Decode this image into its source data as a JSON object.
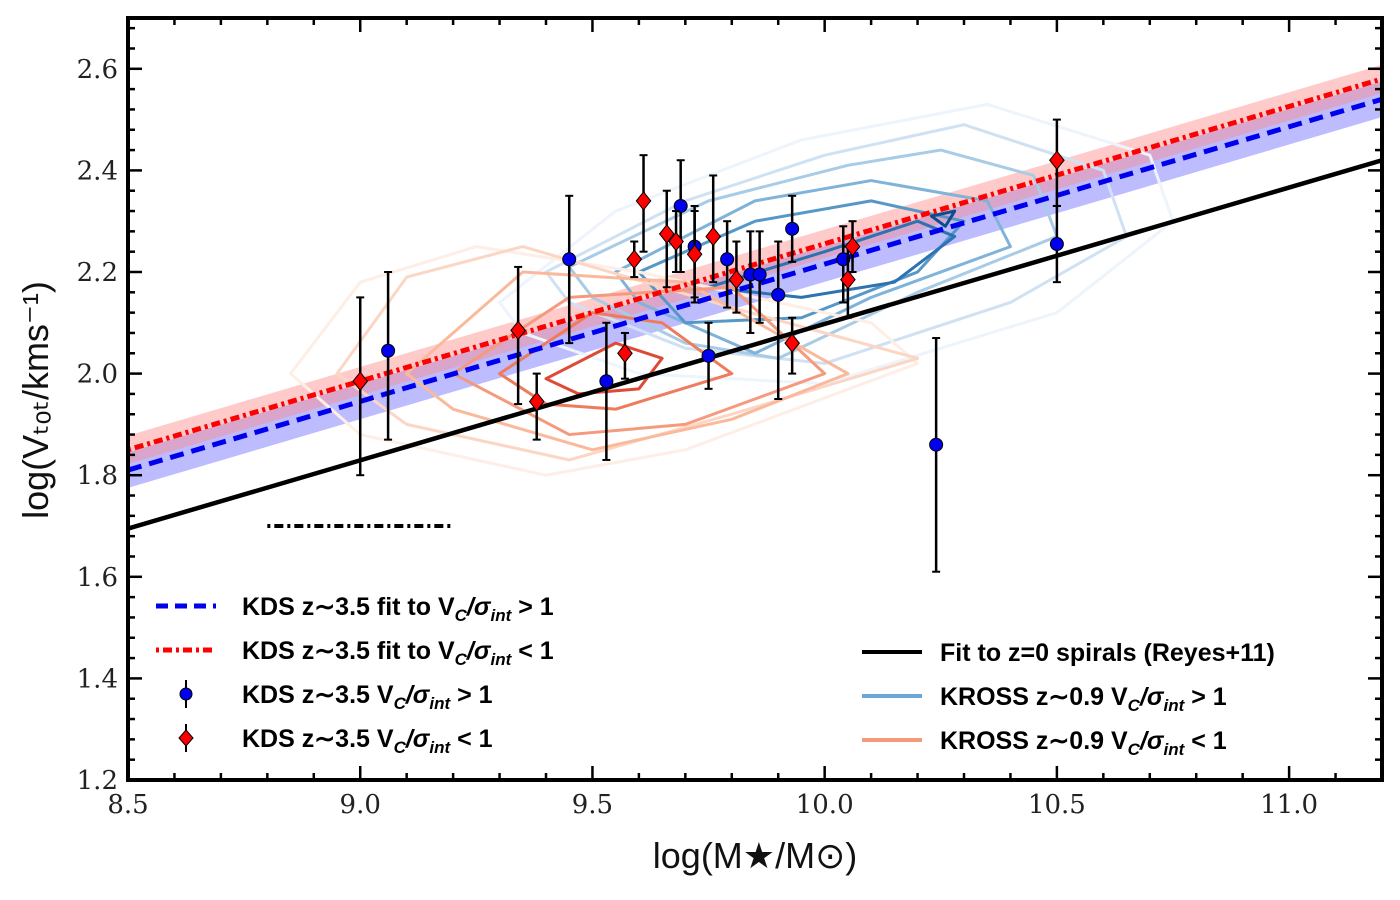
{
  "chart_data": {
    "type": "scatter",
    "xlabel": "log(M★/M⊙)",
    "ylabel": "log(Vₜₒₜ/kms⁻¹)",
    "xlim": [
      8.5,
      11.2
    ],
    "ylim": [
      1.2,
      2.7
    ],
    "xticks": [
      "8.5",
      "9.0",
      "9.5",
      "10.0",
      "10.5",
      "11.0"
    ],
    "yticks": [
      "1.2",
      "1.4",
      "1.6",
      "1.8",
      "2.0",
      "2.2",
      "2.4",
      "2.6"
    ],
    "colors": {
      "kds_blue": "#0000ee",
      "kds_red": "#ff0000",
      "reyes_black": "#000000",
      "kross_blue": "#3a7fbf",
      "kross_red": "#f08060",
      "band_blue": "#6b6bff",
      "band_red": "#ff8a8a"
    },
    "series": [
      {
        "name": "KDS z∼3.5 fit to V_C/σ_int > 1",
        "kind": "line",
        "style": "dashed",
        "color": "#0000ee",
        "x": [
          8.5,
          11.2
        ],
        "y": [
          1.81,
          2.54
        ],
        "band": 0.035
      },
      {
        "name": "KDS z∼3.5 fit to V_C/σ_int < 1",
        "kind": "line",
        "style": "dotdash",
        "color": "#ff0000",
        "x": [
          8.5,
          11.2
        ],
        "y": [
          1.85,
          2.58
        ],
        "band": 0.028
      },
      {
        "name": "Fit to z=0 spirals (Reyes+11)",
        "kind": "line",
        "style": "solid",
        "color": "#000000",
        "x": [
          8.5,
          11.2
        ],
        "y": [
          1.695,
          2.42
        ]
      },
      {
        "name": "KDS z∼3.5 V_C/σ_int > 1",
        "kind": "points",
        "marker": "circle",
        "color": "#0000ee",
        "points": [
          {
            "x": 9.06,
            "y": 2.045,
            "lo": 1.87,
            "hi": 2.2
          },
          {
            "x": 9.45,
            "y": 2.225,
            "lo": 2.06,
            "hi": 2.35
          },
          {
            "x": 9.53,
            "y": 1.985,
            "lo": 1.83,
            "hi": 2.1
          },
          {
            "x": 9.69,
            "y": 2.33,
            "lo": 2.2,
            "hi": 2.42
          },
          {
            "x": 9.72,
            "y": 2.25,
            "lo": 2.15,
            "hi": 2.33
          },
          {
            "x": 9.75,
            "y": 2.035,
            "lo": 1.97,
            "hi": 2.1
          },
          {
            "x": 9.79,
            "y": 2.225,
            "lo": 2.13,
            "hi": 2.3
          },
          {
            "x": 9.84,
            "y": 2.195,
            "lo": 2.08,
            "hi": 2.28
          },
          {
            "x": 9.86,
            "y": 2.195,
            "lo": 2.1,
            "hi": 2.28
          },
          {
            "x": 9.9,
            "y": 2.155,
            "lo": 1.95,
            "hi": 2.26
          },
          {
            "x": 9.93,
            "y": 2.285,
            "lo": 2.22,
            "hi": 2.35
          },
          {
            "x": 10.04,
            "y": 2.225,
            "lo": 2.14,
            "hi": 2.29
          },
          {
            "x": 10.24,
            "y": 1.86,
            "lo": 1.61,
            "hi": 2.07
          },
          {
            "x": 10.5,
            "y": 2.255,
            "lo": 2.18,
            "hi": 2.33
          }
        ]
      },
      {
        "name": "KDS z∼3.5 V_C/σ_int < 1",
        "kind": "points",
        "marker": "diamond",
        "color": "#ff0000",
        "points": [
          {
            "x": 9.0,
            "y": 1.985,
            "lo": 1.8,
            "hi": 2.15
          },
          {
            "x": 9.34,
            "y": 2.085,
            "lo": 1.94,
            "hi": 2.21
          },
          {
            "x": 9.38,
            "y": 1.945,
            "lo": 1.87,
            "hi": 2.0
          },
          {
            "x": 9.57,
            "y": 2.04,
            "lo": 1.99,
            "hi": 2.08
          },
          {
            "x": 9.59,
            "y": 2.225,
            "lo": 2.19,
            "hi": 2.26
          },
          {
            "x": 9.61,
            "y": 2.34,
            "lo": 2.24,
            "hi": 2.43
          },
          {
            "x": 9.66,
            "y": 2.275,
            "lo": 2.17,
            "hi": 2.36
          },
          {
            "x": 9.68,
            "y": 2.26,
            "lo": 2.2,
            "hi": 2.32
          },
          {
            "x": 9.72,
            "y": 2.235,
            "lo": 2.14,
            "hi": 2.32
          },
          {
            "x": 9.76,
            "y": 2.27,
            "lo": 2.18,
            "hi": 2.39
          },
          {
            "x": 9.81,
            "y": 2.185,
            "lo": 2.12,
            "hi": 2.26
          },
          {
            "x": 9.93,
            "y": 2.06,
            "lo": 2.0,
            "hi": 2.11
          },
          {
            "x": 10.05,
            "y": 2.185,
            "lo": 2.11,
            "hi": 2.25
          },
          {
            "x": 10.06,
            "y": 2.25,
            "lo": 2.2,
            "hi": 2.3
          },
          {
            "x": 10.5,
            "y": 2.42,
            "lo": 2.33,
            "hi": 2.5
          }
        ]
      }
    ],
    "annotations": [
      {
        "type": "scale-bar",
        "x": [
          8.8,
          9.2
        ],
        "y": 1.7,
        "style": "dotdash",
        "color": "#000000"
      }
    ],
    "contours": [
      {
        "group": "KROSS z∼0.9 V_C/σ_int > 1",
        "levels": [
          {
            "color": "#eef4fb",
            "pts": [
              [
                9.3,
                2.14
              ],
              [
                9.55,
                2.32
              ],
              [
                9.95,
                2.46
              ],
              [
                10.35,
                2.53
              ],
              [
                10.7,
                2.43
              ],
              [
                10.75,
                2.3
              ],
              [
                10.5,
                2.12
              ],
              [
                10.0,
                1.98
              ],
              [
                9.6,
                2.0
              ],
              [
                9.35,
                2.08
              ]
            ]
          },
          {
            "color": "#cfe1f2",
            "pts": [
              [
                9.4,
                2.2
              ],
              [
                9.7,
                2.34
              ],
              [
                10.0,
                2.43
              ],
              [
                10.3,
                2.49
              ],
              [
                10.6,
                2.4
              ],
              [
                10.65,
                2.27
              ],
              [
                10.4,
                2.14
              ],
              [
                10.0,
                2.02
              ],
              [
                9.7,
                2.05
              ],
              [
                9.45,
                2.14
              ]
            ]
          },
          {
            "color": "#a8cbe6",
            "pts": [
              [
                9.45,
                2.21
              ],
              [
                9.75,
                2.34
              ],
              [
                10.05,
                2.41
              ],
              [
                10.25,
                2.44
              ],
              [
                10.45,
                2.39
              ],
              [
                10.5,
                2.27
              ],
              [
                10.2,
                2.16
              ],
              [
                9.9,
                2.03
              ],
              [
                9.7,
                2.06
              ],
              [
                9.5,
                2.15
              ]
            ]
          },
          {
            "color": "#7fb3d9",
            "pts": [
              [
                9.55,
                2.2
              ],
              [
                9.85,
                2.34
              ],
              [
                10.1,
                2.38
              ],
              [
                10.35,
                2.34
              ],
              [
                10.4,
                2.25
              ],
              [
                10.1,
                2.15
              ],
              [
                9.85,
                2.04
              ],
              [
                9.6,
                2.14
              ]
            ]
          },
          {
            "color": "#5598c8",
            "pts": [
              [
                9.6,
                2.2
              ],
              [
                9.85,
                2.3
              ],
              [
                10.1,
                2.34
              ],
              [
                10.3,
                2.3
              ],
              [
                10.2,
                2.2
              ],
              [
                9.95,
                2.11
              ],
              [
                9.7,
                2.1
              ]
            ]
          },
          {
            "color": "#2e72b0",
            "pts": [
              [
                9.75,
                2.17
              ],
              [
                10.0,
                2.24
              ],
              [
                10.2,
                2.3
              ],
              [
                10.28,
                2.27
              ],
              [
                10.15,
                2.18
              ],
              [
                9.95,
                2.15
              ]
            ]
          },
          {
            "color": "#0d4c8f",
            "pts": [
              [
                10.23,
                2.31
              ],
              [
                10.28,
                2.32
              ],
              [
                10.26,
                2.29
              ]
            ]
          }
        ]
      },
      {
        "group": "KROSS z∼0.9 V_C/σ_int < 1",
        "levels": [
          {
            "color": "#fdeee6",
            "pts": [
              [
                8.85,
                2.0
              ],
              [
                9.0,
                2.18
              ],
              [
                9.25,
                2.25
              ],
              [
                9.6,
                2.2
              ],
              [
                10.1,
                2.1
              ],
              [
                10.2,
                2.02
              ],
              [
                9.7,
                1.85
              ],
              [
                9.4,
                1.8
              ],
              [
                9.0,
                1.88
              ]
            ]
          },
          {
            "color": "#fcd6c4",
            "pts": [
              [
                8.95,
                2.0
              ],
              [
                9.1,
                2.19
              ],
              [
                9.35,
                2.25
              ],
              [
                9.8,
                2.13
              ],
              [
                10.2,
                2.03
              ],
              [
                9.8,
                1.92
              ],
              [
                9.45,
                1.83
              ],
              [
                9.1,
                1.9
              ]
            ]
          },
          {
            "color": "#fbb99c",
            "pts": [
              [
                9.1,
                2.0
              ],
              [
                9.35,
                2.2
              ],
              [
                9.7,
                2.18
              ],
              [
                10.05,
                2.0
              ],
              [
                9.8,
                1.91
              ],
              [
                9.5,
                1.85
              ],
              [
                9.2,
                1.93
              ]
            ]
          },
          {
            "color": "#f59a7c",
            "pts": [
              [
                9.2,
                2.0
              ],
              [
                9.45,
                2.15
              ],
              [
                9.8,
                2.17
              ],
              [
                10.0,
                2.0
              ],
              [
                9.7,
                1.9
              ],
              [
                9.45,
                1.88
              ]
            ]
          },
          {
            "color": "#ee7b5c",
            "pts": [
              [
                9.3,
                2.0
              ],
              [
                9.5,
                2.12
              ],
              [
                9.65,
                2.1
              ],
              [
                9.8,
                2.0
              ],
              [
                9.55,
                1.93
              ],
              [
                9.4,
                1.94
              ]
            ]
          },
          {
            "color": "#dd4a35",
            "pts": [
              [
                9.4,
                1.99
              ],
              [
                9.55,
                2.06
              ],
              [
                9.65,
                2.03
              ],
              [
                9.6,
                1.97
              ],
              [
                9.47,
                1.96
              ]
            ]
          }
        ]
      }
    ],
    "legend_left": [
      {
        "sym": "dash",
        "color": "#0000ee",
        "label": "KDS z∼3.5 fit to V",
        "sub": "C",
        "mid": "/σ",
        "sub2": "int",
        "rel": " > 1"
      },
      {
        "sym": "dotdash",
        "color": "#ff0000",
        "label": "KDS z∼3.5 fit to V",
        "sub": "C",
        "mid": "/σ",
        "sub2": "int",
        "rel": " < 1"
      },
      {
        "sym": "circle",
        "color": "#0000ee",
        "label": "KDS z∼3.5 V",
        "sub": "C",
        "mid": "/σ",
        "sub2": "int",
        "rel": " > 1"
      },
      {
        "sym": "diamond",
        "color": "#ff0000",
        "label": "KDS z∼3.5 V",
        "sub": "C",
        "mid": "/σ",
        "sub2": "int",
        "rel": " < 1"
      }
    ],
    "legend_right": [
      {
        "sym": "line",
        "color": "#000000",
        "label": "Fit to z=0 spirals (Reyes+11)"
      },
      {
        "sym": "line",
        "color": "#6aa6d6",
        "label": "KROSS z∼0.9 V",
        "sub": "C",
        "mid": "/σ",
        "sub2": "int",
        "rel": " > 1"
      },
      {
        "sym": "line",
        "color": "#f4997a",
        "label": "KROSS z∼0.9 V",
        "sub": "C",
        "mid": "/σ",
        "sub2": "int",
        "rel": " < 1"
      }
    ]
  }
}
